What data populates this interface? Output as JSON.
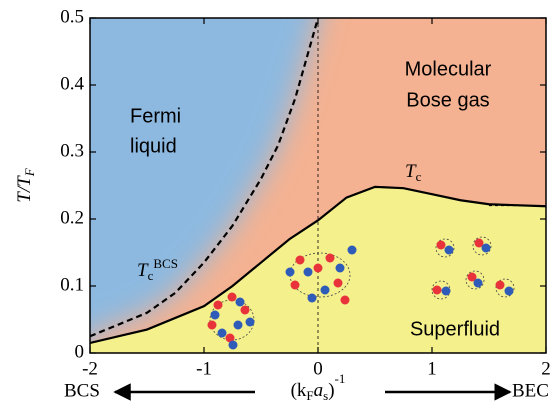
{
  "chart_data": {
    "type": "line",
    "xlim": [
      -2,
      2
    ],
    "ylim": [
      0,
      0.5
    ],
    "xticks": [
      -2,
      -1,
      0,
      1,
      2
    ],
    "yticks": [
      0,
      0.1,
      0.2,
      0.3,
      0.4,
      0.5
    ],
    "y_label": {
      "main": "T/T",
      "sub": "F"
    },
    "x_label": {
      "parts": [
        "(k",
        "F",
        "a",
        "s",
        ")",
        "-1"
      ]
    },
    "left_label": "BCS",
    "right_label": "BEC",
    "regions": {
      "fermi": [
        "Fermi",
        "liquid"
      ],
      "bose": [
        "Molecular",
        "Bose gas"
      ],
      "superfluid": "Superfluid"
    },
    "tc_label": {
      "main": "T",
      "sub": "c"
    },
    "tc_bcs_label": {
      "main": "T",
      "sub": "c",
      "sup": "BCS"
    },
    "colors": {
      "normal_bcs": "#8db9e0",
      "normal_bec": "#f4b292",
      "superfluid": "#f4f08c"
    },
    "series": [
      {
        "color": "#000000",
        "dash": false,
        "x": [
          -2,
          -1.5,
          -1,
          -0.75,
          -0.5,
          -0.25,
          0,
          0.25,
          0.5,
          0.75,
          1,
          1.25,
          1.5,
          2
        ],
        "values": [
          0.015,
          0.035,
          0.07,
          0.1,
          0.135,
          0.17,
          0.198,
          0.232,
          0.248,
          0.246,
          0.237,
          0.228,
          0.222,
          0.219
        ]
      },
      {
        "color": "#000000",
        "dash": true,
        "x": [
          -2,
          -1.5,
          -1.25,
          -1,
          -0.75,
          -0.5,
          -0.35,
          -0.2,
          -0.1,
          0
        ],
        "values": [
          0.025,
          0.06,
          0.09,
          0.135,
          0.19,
          0.26,
          0.31,
          0.38,
          0.44,
          0.5
        ]
      },
      {
        "color": "#000000",
        "dash": true,
        "thin": true,
        "x": [
          1.5,
          2
        ],
        "values": [
          0.22,
          0.22
        ]
      }
    ]
  }
}
